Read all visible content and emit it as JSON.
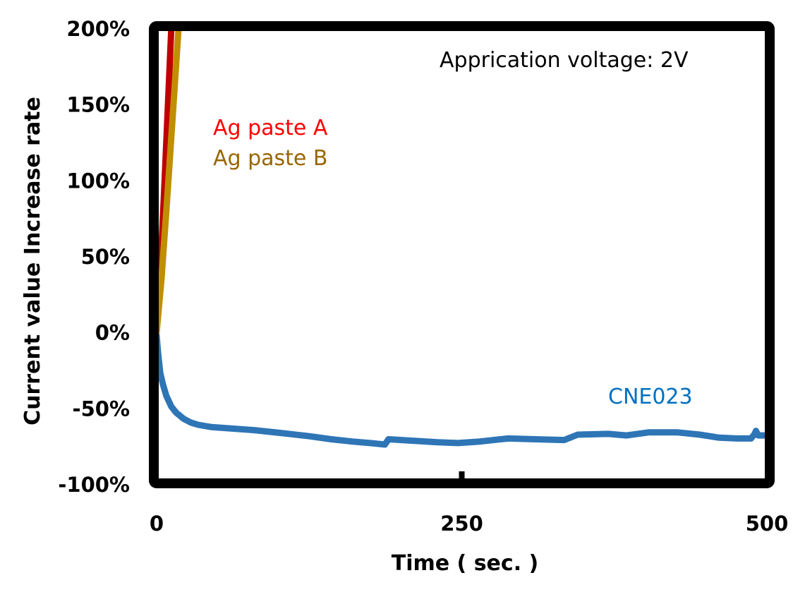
{
  "chart_data": {
    "type": "line",
    "title": "",
    "xlabel": "Time ( sec. )",
    "ylabel": "Current value Increase rate",
    "xlim": [
      0,
      500
    ],
    "ylim": [
      -100,
      200
    ],
    "x_ticks": [
      0,
      250,
      500
    ],
    "x_tick_labels": [
      "0",
      "250",
      "500"
    ],
    "y_ticks": [
      200,
      150,
      100,
      50,
      0,
      -50,
      -100
    ],
    "y_tick_labels": [
      "200%",
      "150%",
      "100%",
      "50%",
      "0%",
      "-50%",
      "-100%"
    ],
    "grid": false,
    "annotations": {
      "voltage": "Apprication voltage: 2V"
    },
    "series": [
      {
        "name": "Ag paste A",
        "color": "#C00000",
        "label_color": "#FF0000",
        "points": [
          [
            0,
            0
          ],
          [
            3,
            40
          ],
          [
            6,
            90
          ],
          [
            9,
            145
          ],
          [
            12,
            200
          ]
        ]
      },
      {
        "name": "Ag paste B",
        "color": "#BF8F00",
        "label_color": "#996600",
        "points": [
          [
            0,
            0
          ],
          [
            4,
            35
          ],
          [
            8,
            80
          ],
          [
            13,
            140
          ],
          [
            18,
            200
          ]
        ]
      },
      {
        "name": "CNE023",
        "color": "#2E75B6",
        "label_color": "#0070C0",
        "points": [
          [
            0,
            -2
          ],
          [
            1,
            -12
          ],
          [
            2,
            -20
          ],
          [
            3,
            -27
          ],
          [
            5,
            -34
          ],
          [
            8,
            -42
          ],
          [
            12,
            -49
          ],
          [
            16,
            -53
          ],
          [
            22,
            -57
          ],
          [
            28,
            -59.5
          ],
          [
            34,
            -61
          ],
          [
            45,
            -62.5
          ],
          [
            62,
            -63.5
          ],
          [
            80,
            -64.5
          ],
          [
            103,
            -66.5
          ],
          [
            125,
            -68.5
          ],
          [
            143,
            -70.5
          ],
          [
            160,
            -72
          ],
          [
            175,
            -73
          ],
          [
            187,
            -74
          ],
          [
            190,
            -70.5
          ],
          [
            210,
            -71.5
          ],
          [
            230,
            -72.5
          ],
          [
            247,
            -73
          ],
          [
            265,
            -72
          ],
          [
            288,
            -70
          ],
          [
            310,
            -70.5
          ],
          [
            334,
            -71
          ],
          [
            345,
            -67.5
          ],
          [
            370,
            -67
          ],
          [
            385,
            -68
          ],
          [
            403,
            -66
          ],
          [
            427,
            -66
          ],
          [
            445,
            -67.5
          ],
          [
            461,
            -69.5
          ],
          [
            475,
            -70
          ],
          [
            487,
            -70
          ],
          [
            490,
            -67
          ],
          [
            491,
            -65
          ],
          [
            493,
            -68
          ],
          [
            500,
            -68
          ]
        ]
      }
    ]
  }
}
